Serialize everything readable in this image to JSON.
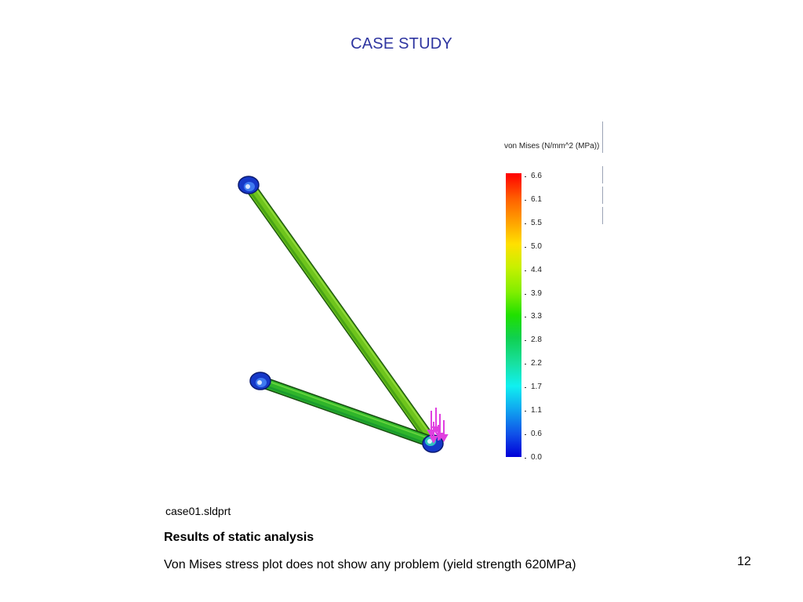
{
  "slide": {
    "title": "CASE STUDY",
    "filename": "case01.sldprt",
    "heading": "Results of static analysis",
    "description": "Von Mises stress plot does not show any problem (yield strength 620MPa)",
    "page_number": "12"
  },
  "legend": {
    "title": "von Mises (N/mm^2 (MPa))",
    "values": [
      "6.6",
      "6.1",
      "5.5",
      "5.0",
      "4.4",
      "3.9",
      "3.3",
      "2.8",
      "2.2",
      "1.7",
      "1.1",
      "0.6",
      "0.0"
    ]
  },
  "colors": {
    "title": "#2e35a0",
    "link_green": "#6ec41c",
    "joint_blue": "#1a3ad6",
    "load_arrows": "#e040e0"
  }
}
